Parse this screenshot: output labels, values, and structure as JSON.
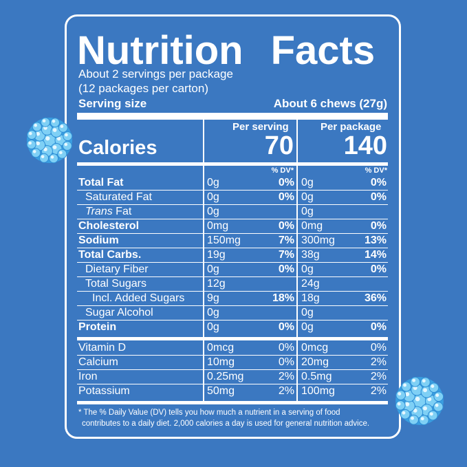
{
  "title": {
    "word1": "Nutrition",
    "word2": "Facts"
  },
  "servings": {
    "per_package": "About 2 servings per package",
    "per_carton": "(12 packages per carton)",
    "size_label": "Serving size",
    "size_value": "About 6 chews (27g)"
  },
  "calories": {
    "label": "Calories",
    "col1_header": "Per serving",
    "col2_header": "Per package",
    "col1_value": "70",
    "col2_value": "140",
    "dv_header": "% DV*"
  },
  "nutrients": [
    {
      "name": "Total Fat",
      "bold": true,
      "indent": 0,
      "a1": "0g",
      "d1": "0%",
      "a2": "0g",
      "d2": "0%"
    },
    {
      "name": "Saturated Fat",
      "bold": false,
      "indent": 1,
      "a1": "0g",
      "d1": "0%",
      "a2": "0g",
      "d2": "0%"
    },
    {
      "name_italic": "Trans",
      "name": " Fat",
      "bold": false,
      "indent": 1,
      "a1": "0g",
      "d1": "",
      "a2": "0g",
      "d2": ""
    },
    {
      "name": "Cholesterol",
      "bold": true,
      "indent": 0,
      "a1": "0mg",
      "d1": "0%",
      "a2": "0mg",
      "d2": "0%"
    },
    {
      "name": "Sodium",
      "bold": true,
      "indent": 0,
      "a1": "150mg",
      "d1": "7%",
      "a2": "300mg",
      "d2": "13%"
    },
    {
      "name": "Total Carbs.",
      "bold": true,
      "indent": 0,
      "a1": "19g",
      "d1": "7%",
      "a2": "38g",
      "d2": "14%"
    },
    {
      "name": "Dietary Fiber",
      "bold": false,
      "indent": 1,
      "a1": "0g",
      "d1": "0%",
      "a2": "0g",
      "d2": "0%"
    },
    {
      "name": "Total Sugars",
      "bold": false,
      "indent": 1,
      "a1": "12g",
      "d1": "",
      "a2": "24g",
      "d2": ""
    },
    {
      "name": "Incl. Added Sugars",
      "bold": false,
      "indent": 2,
      "a1": "9g",
      "d1": "18%",
      "a2": "18g",
      "d2": "36%"
    },
    {
      "name": "Sugar Alcohol",
      "bold": false,
      "indent": 1,
      "a1": "0g",
      "d1": "",
      "a2": "0g",
      "d2": ""
    },
    {
      "name": "Protein",
      "bold": true,
      "indent": 0,
      "a1": "0g",
      "d1": "0%",
      "a2": "0g",
      "d2": "0%"
    }
  ],
  "vitamins": [
    {
      "name": "Vitamin D",
      "a1": "0mcg",
      "d1": "0%",
      "a2": "0mcg",
      "d2": "0%"
    },
    {
      "name": "Calcium",
      "a1": "10mg",
      "d1": "0%",
      "a2": "20mg",
      "d2": "2%"
    },
    {
      "name": "Iron",
      "a1": "0.25mg",
      "d1": "2%",
      "a2": "0.5mg",
      "d2": "2%"
    },
    {
      "name": "Potassium",
      "a1": "50mg",
      "d1": "2%",
      "a2": "100mg",
      "d2": "2%"
    }
  ],
  "footnote": {
    "line1": "* The % Daily Value (DV) tells you how much a nutrient in a serving of food",
    "line2": "contributes to a daily diet. 2,000 calories a day is used for general nutrition advice."
  },
  "colors": {
    "background": "#3b78c1",
    "text": "#ffffff",
    "berry": "#7fd0f5"
  },
  "decorations": [
    "blue-raspberry-left",
    "blue-raspberry-right"
  ]
}
